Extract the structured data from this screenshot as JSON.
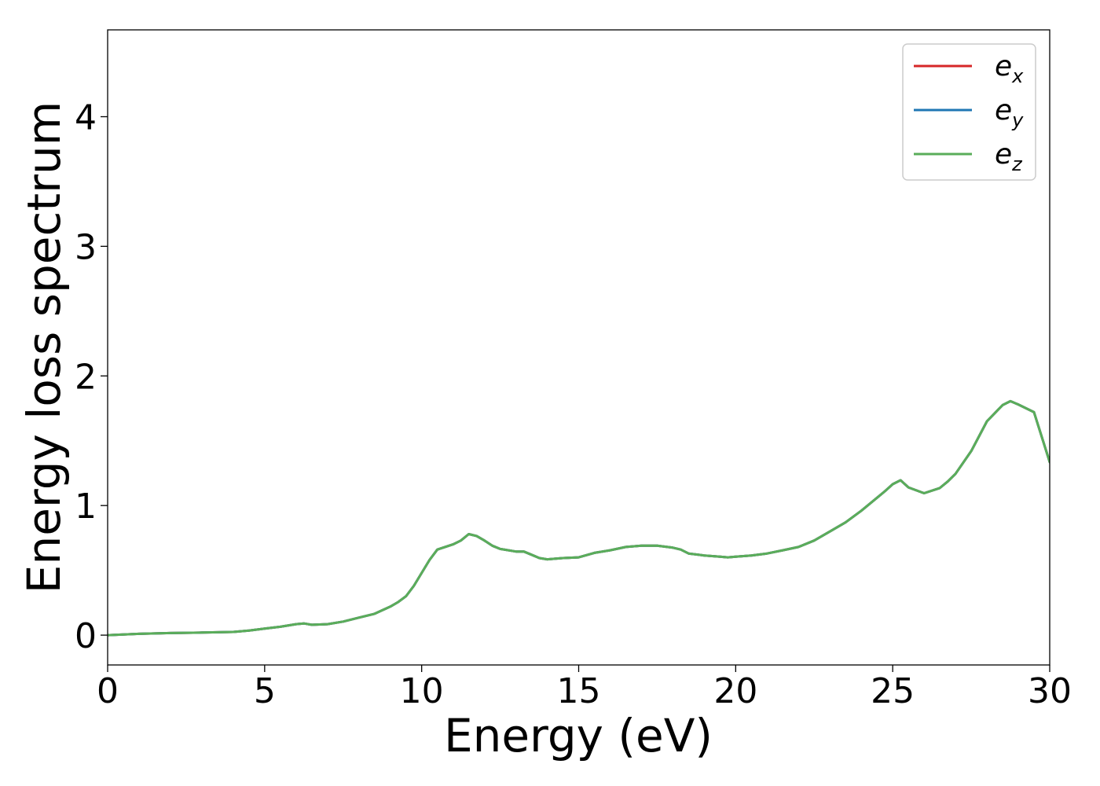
{
  "chart_data": {
    "type": "line",
    "title": "",
    "xlabel": "Energy (eV)",
    "ylabel": "Energy loss spectrum",
    "xlim": [
      0,
      30
    ],
    "ylim": [
      -0.23,
      4.67
    ],
    "xticks": [
      0,
      5,
      10,
      15,
      20,
      25,
      30
    ],
    "yticks": [
      0,
      1,
      2,
      3,
      4
    ],
    "grid": false,
    "legend_position": "top-right",
    "x": [
      0,
      0.5,
      1,
      1.5,
      2,
      2.5,
      3,
      3.5,
      4,
      4.5,
      5,
      5.5,
      6,
      6.25,
      6.5,
      7,
      7.5,
      8,
      8.5,
      9,
      9.25,
      9.5,
      9.75,
      10,
      10.25,
      10.5,
      11,
      11.25,
      11.5,
      11.75,
      12,
      12.25,
      12.5,
      13,
      13.25,
      13.5,
      13.75,
      14,
      14.5,
      15,
      15.5,
      16,
      16.5,
      17,
      17.5,
      18,
      18.25,
      18.5,
      19,
      19.5,
      19.75,
      20,
      20.5,
      21,
      21.5,
      22,
      22.5,
      23,
      23.5,
      24,
      24.5,
      24.75,
      25,
      25.25,
      25.5,
      26,
      26.5,
      26.75,
      27,
      27.5,
      28,
      28.5,
      28.75,
      29,
      29.5,
      30
    ],
    "series": [
      {
        "name": "e_x",
        "color": "#d62728",
        "values": [
          0.0,
          0.005,
          0.01,
          0.013,
          0.016,
          0.018,
          0.02,
          0.022,
          0.025,
          0.035,
          0.05,
          0.065,
          0.085,
          0.09,
          0.08,
          0.085,
          0.105,
          0.135,
          0.165,
          0.22,
          0.255,
          0.3,
          0.38,
          0.48,
          0.58,
          0.66,
          0.7,
          0.73,
          0.78,
          0.765,
          0.73,
          0.69,
          0.665,
          0.645,
          0.645,
          0.62,
          0.595,
          0.585,
          0.595,
          0.6,
          0.635,
          0.655,
          0.68,
          0.69,
          0.69,
          0.675,
          0.66,
          0.63,
          0.615,
          0.605,
          0.6,
          0.605,
          0.615,
          0.63,
          0.655,
          0.68,
          0.73,
          0.8,
          0.87,
          0.96,
          1.06,
          1.11,
          1.165,
          1.195,
          1.14,
          1.095,
          1.135,
          1.185,
          1.245,
          1.42,
          1.65,
          1.775,
          1.805,
          1.78,
          1.72,
          1.335
        ]
      },
      {
        "name": "e_y",
        "color": "#1f77b4",
        "values": [
          0.0,
          0.005,
          0.01,
          0.013,
          0.016,
          0.018,
          0.02,
          0.022,
          0.025,
          0.035,
          0.05,
          0.065,
          0.085,
          0.09,
          0.08,
          0.085,
          0.105,
          0.135,
          0.165,
          0.22,
          0.255,
          0.3,
          0.38,
          0.48,
          0.58,
          0.66,
          0.7,
          0.73,
          0.78,
          0.765,
          0.73,
          0.69,
          0.665,
          0.645,
          0.645,
          0.62,
          0.595,
          0.585,
          0.595,
          0.6,
          0.635,
          0.655,
          0.68,
          0.69,
          0.69,
          0.675,
          0.66,
          0.63,
          0.615,
          0.605,
          0.6,
          0.605,
          0.615,
          0.63,
          0.655,
          0.68,
          0.73,
          0.8,
          0.87,
          0.96,
          1.06,
          1.11,
          1.165,
          1.195,
          1.14,
          1.095,
          1.135,
          1.185,
          1.245,
          1.42,
          1.65,
          1.775,
          1.805,
          1.78,
          1.72,
          1.335
        ]
      },
      {
        "name": "e_z",
        "color": "#5aad5a",
        "values": [
          0.0,
          0.005,
          0.01,
          0.013,
          0.016,
          0.018,
          0.02,
          0.022,
          0.025,
          0.035,
          0.05,
          0.065,
          0.085,
          0.09,
          0.08,
          0.085,
          0.105,
          0.135,
          0.165,
          0.22,
          0.255,
          0.3,
          0.38,
          0.48,
          0.58,
          0.66,
          0.7,
          0.73,
          0.78,
          0.765,
          0.73,
          0.69,
          0.665,
          0.645,
          0.645,
          0.62,
          0.595,
          0.585,
          0.595,
          0.6,
          0.635,
          0.655,
          0.68,
          0.69,
          0.69,
          0.675,
          0.66,
          0.63,
          0.615,
          0.605,
          0.6,
          0.605,
          0.615,
          0.63,
          0.655,
          0.68,
          0.73,
          0.8,
          0.87,
          0.96,
          1.06,
          1.11,
          1.165,
          1.195,
          1.14,
          1.095,
          1.135,
          1.185,
          1.245,
          1.42,
          1.65,
          1.775,
          1.805,
          1.78,
          1.72,
          1.335
        ]
      }
    ],
    "legend": [
      {
        "base": "e",
        "sub": "x",
        "color": "#d62728"
      },
      {
        "base": "e",
        "sub": "y",
        "color": "#1f77b4"
      },
      {
        "base": "e",
        "sub": "z",
        "color": "#5aad5a"
      }
    ]
  }
}
